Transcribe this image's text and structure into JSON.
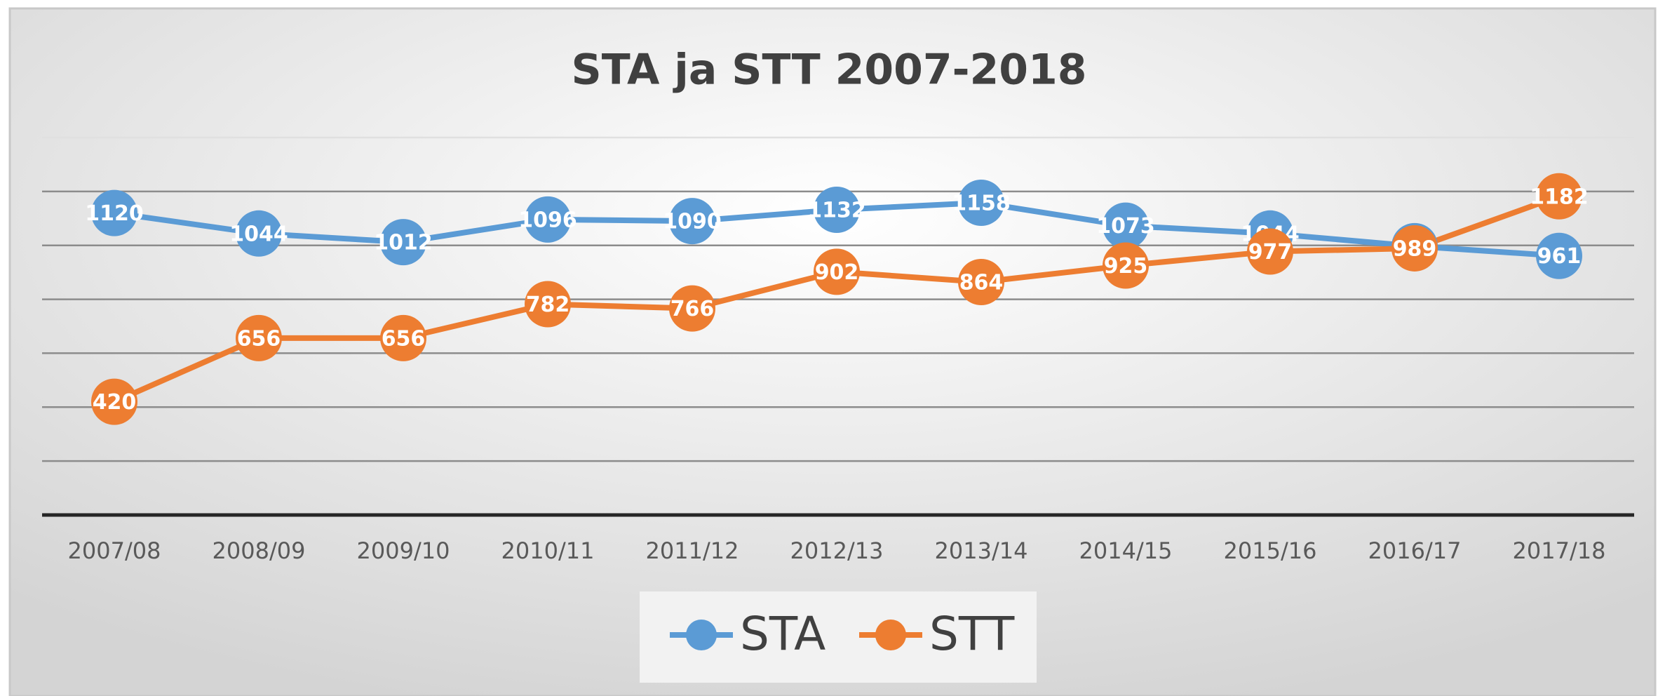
{
  "chart_data": {
    "type": "line",
    "title": "STA ja STT 2007-2018",
    "categories": [
      "2007/08",
      "2008/09",
      "2009/10",
      "2010/11",
      "2011/12",
      "2012/13",
      "2013/14",
      "2014/15",
      "2015/16",
      "2016/17",
      "2017/18"
    ],
    "series": [
      {
        "name": "STA",
        "color": "#5b9bd5",
        "values": [
          1120,
          1044,
          1012,
          1096,
          1090,
          1132,
          1158,
          1073,
          1044,
          997,
          961
        ]
      },
      {
        "name": "STT",
        "color": "#ed7d31",
        "values": [
          420,
          656,
          656,
          782,
          766,
          902,
          864,
          925,
          977,
          989,
          1182
        ]
      }
    ],
    "ylim": [
      0,
      1400
    ],
    "yticks": [
      0,
      200,
      400,
      600,
      800,
      1000,
      1200,
      1400
    ],
    "grid": true,
    "legend": "bottom"
  }
}
